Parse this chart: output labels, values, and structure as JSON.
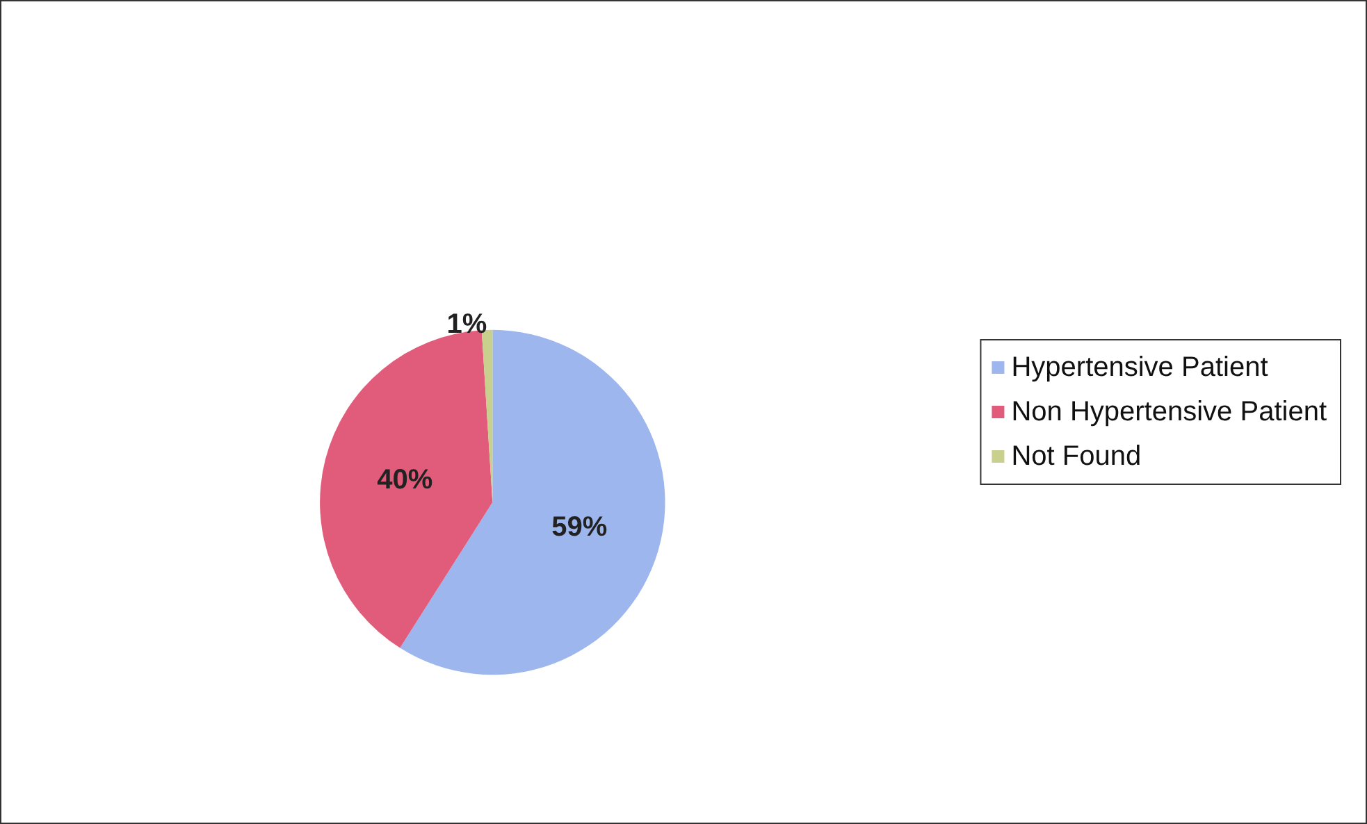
{
  "chart_data": {
    "type": "pie",
    "categories": [
      "Hypertensive Patient",
      "Non Hypertensive Patient",
      "Not Found"
    ],
    "values": [
      59,
      40,
      1
    ],
    "colors": [
      "#9db6ee",
      "#e05c7a",
      "#c9cf8c"
    ],
    "value_labels": [
      "59%",
      "40%",
      "1%"
    ],
    "legend": "right"
  }
}
